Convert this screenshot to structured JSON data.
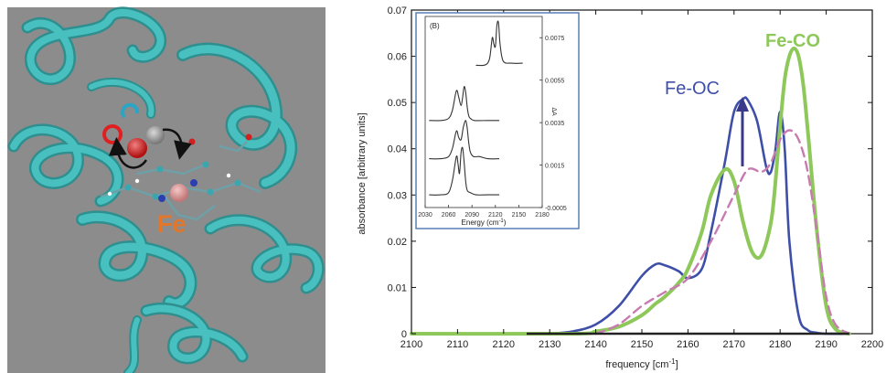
{
  "left_panel": {
    "label_fe": "Fe",
    "label_c": "C",
    "label_o": "O",
    "colors": {
      "background": "#8c8c8c",
      "protein": "#3fb6b6",
      "fe_label": "#e2762b",
      "c_ring": "#29a5c6",
      "o_ring": "#e02020"
    }
  },
  "main_chart": {
    "ylabel": "absorbance [arbitrary units]",
    "xlabel": "frequency [cm",
    "xlabel_sup": "-1",
    "xlabel_end": "]",
    "annotations": {
      "fe_oc": "Fe-OC",
      "fe_co": "Fe-CO"
    },
    "xticks": [
      "2100",
      "2110",
      "2120",
      "2130",
      "2140",
      "2150",
      "2160",
      "2170",
      "2180",
      "2190",
      "2200"
    ],
    "yticks": [
      "0",
      "0.01",
      "0.02",
      "0.03",
      "0.04",
      "0.05",
      "0.06",
      "0.07"
    ],
    "colors": {
      "blue": "#3e4fa8",
      "green": "#8ec85a",
      "pink": "#c77bb0",
      "dark": "#333333"
    }
  },
  "inset": {
    "label": "(B)",
    "xlabel": "Energy (cm",
    "xlabel_sup": "-1",
    "xlabel_end": ")",
    "ylabel": "ΔA",
    "xticks": [
      "2030",
      "2060",
      "2090",
      "2120",
      "2150",
      "2180"
    ],
    "yticks": [
      "0.0075",
      "0.0055",
      "0.0035",
      "0.0015",
      "-0.0005"
    ]
  },
  "chart_data": [
    {
      "type": "line",
      "title": "",
      "xlabel": "frequency [cm-1]",
      "ylabel": "absorbance [arbitrary units]",
      "xlim": [
        2100,
        2200
      ],
      "ylim": [
        0,
        0.07
      ],
      "grid": false,
      "series": [
        {
          "name": "Fe-OC",
          "color": "#3e4fa8",
          "x": [
            2130,
            2135,
            2140,
            2145,
            2150,
            2153,
            2155,
            2158,
            2160,
            2163,
            2165,
            2168,
            2170,
            2172,
            2173,
            2175,
            2177,
            2178,
            2179,
            2180,
            2181,
            2182,
            2184,
            2186,
            2188,
            2190,
            2195
          ],
          "y": [
            0,
            0.0005,
            0.002,
            0.006,
            0.0125,
            0.015,
            0.0148,
            0.0135,
            0.012,
            0.014,
            0.022,
            0.037,
            0.048,
            0.0508,
            0.0505,
            0.046,
            0.036,
            0.035,
            0.04,
            0.048,
            0.04,
            0.02,
            0.004,
            0.0008,
            0.0002,
            0,
            0
          ]
        },
        {
          "name": "Fe-CO",
          "color": "#8ec85a",
          "x": [
            2100,
            2135,
            2140,
            2145,
            2150,
            2153,
            2155,
            2158,
            2160,
            2163,
            2165,
            2168,
            2170,
            2172,
            2174,
            2176,
            2178,
            2179,
            2180,
            2181,
            2182,
            2183,
            2184,
            2185,
            2186,
            2188,
            2190,
            2192,
            2195
          ],
          "y": [
            0,
            0,
            0.0005,
            0.0015,
            0.004,
            0.0065,
            0.008,
            0.011,
            0.014,
            0.022,
            0.03,
            0.0355,
            0.033,
            0.024,
            0.0175,
            0.017,
            0.024,
            0.033,
            0.045,
            0.055,
            0.06,
            0.0617,
            0.06,
            0.054,
            0.044,
            0.022,
            0.006,
            0.001,
            0
          ]
        },
        {
          "name": "",
          "color": "#c77bb0",
          "x": [
            2140,
            2145,
            2150,
            2155,
            2160,
            2165,
            2170,
            2173,
            2176,
            2178,
            2180,
            2182,
            2184,
            2186,
            2188,
            2190,
            2192,
            2195
          ],
          "y": [
            0,
            0.002,
            0.006,
            0.009,
            0.012,
            0.02,
            0.03,
            0.0355,
            0.035,
            0.037,
            0.042,
            0.044,
            0.042,
            0.035,
            0.022,
            0.008,
            0.002,
            0
          ]
        }
      ]
    },
    {
      "type": "line",
      "title": "",
      "xlabel": "Energy (cm-1)",
      "ylabel": "ΔA",
      "xlim": [
        2030,
        2180
      ],
      "ylim": [
        -0.0005,
        0.0085
      ],
      "grid": false,
      "series": [
        {
          "name": "",
          "base": 0.0062,
          "x": [
            2095,
            2105,
            2110,
            2113,
            2116,
            2118,
            2120,
            2122,
            2124,
            2126,
            2130,
            2140,
            2155
          ],
          "y": [
            0.0062,
            0.0062,
            0.0063,
            0.0066,
            0.0075,
            0.0072,
            0.0071,
            0.0081,
            0.0082,
            0.0072,
            0.0064,
            0.0063,
            0.0063
          ]
        },
        {
          "name": "",
          "base": 0.0036,
          "x": [
            2035,
            2050,
            2060,
            2065,
            2070,
            2073,
            2076,
            2078,
            2080,
            2082,
            2084,
            2086,
            2088,
            2093,
            2110,
            2125
          ],
          "y": [
            0.0036,
            0.0036,
            0.0037,
            0.0041,
            0.005,
            0.0047,
            0.0043,
            0.0047,
            0.0052,
            0.0049,
            0.0042,
            0.0038,
            0.0037,
            0.0036,
            0.0036,
            0.0036
          ]
        },
        {
          "name": "",
          "base": 0.0018,
          "x": [
            2035,
            2050,
            2060,
            2065,
            2070,
            2073,
            2076,
            2079,
            2082,
            2084,
            2086,
            2088,
            2092,
            2100,
            2110,
            2125
          ],
          "y": [
            0.0018,
            0.0018,
            0.0019,
            0.0023,
            0.0031,
            0.0028,
            0.0027,
            0.0033,
            0.0036,
            0.0032,
            0.0025,
            0.0021,
            0.0019,
            0.0019,
            0.0018,
            0.0018
          ]
        },
        {
          "name": "",
          "base": 0.0001,
          "x": [
            2035,
            2050,
            2060,
            2065,
            2070,
            2072,
            2074,
            2076,
            2078,
            2080,
            2082,
            2084,
            2088,
            2095,
            2110,
            2125
          ],
          "y": [
            0.0001,
            0.0001,
            0.0002,
            0.0008,
            0.0019,
            0.0016,
            0.0011,
            0.0021,
            0.0023,
            0.0016,
            0.0007,
            0.0003,
            0.0002,
            0.0001,
            0.0001,
            0.0001
          ]
        }
      ]
    }
  ]
}
